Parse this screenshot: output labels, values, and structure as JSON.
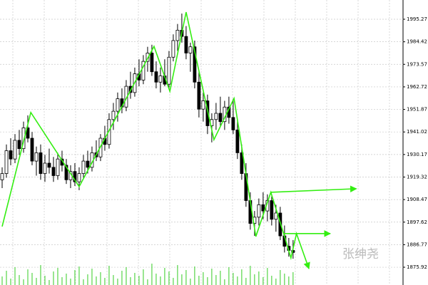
{
  "chart_data": {
    "type": "candlestick",
    "watermark": "张绅尧",
    "xlim": [
      -0.5,
      93.7
    ],
    "ylim": [
      1867.36,
      2004.53
    ],
    "yticks": [
      1995.27,
      1984.42,
      1973.57,
      1962.72,
      1951.87,
      1941.02,
      1930.17,
      1919.32,
      1908.47,
      1897.62,
      1886.77,
      1875.92
    ],
    "grid": true,
    "candle_color": "#000000",
    "zigzag_color": "#33ee11",
    "volume_color": "#33cc22",
    "candles": [
      [
        1918,
        1924,
        1914,
        1921
      ],
      [
        1921,
        1935,
        1919,
        1932
      ],
      [
        1932,
        1938,
        1925,
        1928
      ],
      [
        1928,
        1940,
        1926,
        1937
      ],
      [
        1937,
        1942,
        1930,
        1933
      ],
      [
        1933,
        1946,
        1931,
        1943
      ],
      [
        1943,
        1949,
        1936,
        1938
      ],
      [
        1938,
        1941,
        1925,
        1927
      ],
      [
        1927,
        1934,
        1920,
        1931
      ],
      [
        1931,
        1935,
        1918,
        1921
      ],
      [
        1921,
        1930,
        1917,
        1926
      ],
      [
        1926,
        1933,
        1921,
        1924
      ],
      [
        1924,
        1929,
        1917,
        1920
      ],
      [
        1920,
        1931,
        1918,
        1928
      ],
      [
        1928,
        1932,
        1922,
        1925
      ],
      [
        1925,
        1928,
        1916,
        1918
      ],
      [
        1918,
        1925,
        1914,
        1922
      ],
      [
        1922,
        1926,
        1915,
        1917
      ],
      [
        1917,
        1924,
        1913,
        1921
      ],
      [
        1921,
        1930,
        1919,
        1927
      ],
      [
        1927,
        1932,
        1921,
        1924
      ],
      [
        1924,
        1934,
        1922,
        1931
      ],
      [
        1931,
        1937,
        1927,
        1929
      ],
      [
        1929,
        1940,
        1927,
        1938
      ],
      [
        1938,
        1944,
        1932,
        1935
      ],
      [
        1935,
        1950,
        1933,
        1947
      ],
      [
        1947,
        1955,
        1942,
        1951
      ],
      [
        1951,
        1960,
        1946,
        1957
      ],
      [
        1957,
        1962,
        1950,
        1953
      ],
      [
        1953,
        1966,
        1951,
        1963
      ],
      [
        1963,
        1970,
        1957,
        1960
      ],
      [
        1960,
        1972,
        1958,
        1969
      ],
      [
        1969,
        1976,
        1963,
        1966
      ],
      [
        1966,
        1978,
        1964,
        1975
      ],
      [
        1975,
        1982,
        1970,
        1979
      ],
      [
        1979,
        1983,
        1968,
        1970
      ],
      [
        1970,
        1975,
        1962,
        1965
      ],
      [
        1965,
        1972,
        1960,
        1968
      ],
      [
        1968,
        1976,
        1963,
        1964
      ],
      [
        1964,
        1980,
        1962,
        1977
      ],
      [
        1977,
        1988,
        1975,
        1985
      ],
      [
        1985,
        1993,
        1980,
        1990
      ],
      [
        1990,
        1998,
        1984,
        1987
      ],
      [
        1987,
        1992,
        1976,
        1979
      ],
      [
        1979,
        1984,
        1970,
        1982
      ],
      [
        1982,
        1985,
        1962,
        1965
      ],
      [
        1965,
        1970,
        1948,
        1952
      ],
      [
        1952,
        1960,
        1946,
        1956
      ],
      [
        1956,
        1959,
        1940,
        1944
      ],
      [
        1944,
        1950,
        1936,
        1947
      ],
      [
        1947,
        1955,
        1942,
        1950
      ],
      [
        1950,
        1958,
        1944,
        1946
      ],
      [
        1946,
        1956,
        1942,
        1953
      ],
      [
        1953,
        1958,
        1945,
        1948
      ],
      [
        1948,
        1957,
        1940,
        1942
      ],
      [
        1942,
        1946,
        1928,
        1931
      ],
      [
        1931,
        1935,
        1918,
        1921
      ],
      [
        1921,
        1926,
        1905,
        1908
      ],
      [
        1908,
        1912,
        1894,
        1897
      ],
      [
        1897,
        1903,
        1891,
        1900
      ],
      [
        1900,
        1909,
        1896,
        1906
      ],
      [
        1906,
        1912,
        1899,
        1903
      ],
      [
        1903,
        1911,
        1898,
        1908
      ],
      [
        1908,
        1910,
        1896,
        1899
      ],
      [
        1899,
        1906,
        1893,
        1902
      ],
      [
        1902,
        1905,
        1889,
        1891
      ],
      [
        1891,
        1896,
        1883,
        1886
      ],
      [
        1886,
        1890,
        1881,
        1884
      ],
      [
        1884,
        1889,
        1880,
        1883
      ]
    ],
    "volume": [
      12,
      20,
      9,
      25,
      14,
      8,
      22,
      17,
      10,
      28,
      13,
      7,
      19,
      24,
      11,
      16,
      9,
      21,
      26,
      8,
      15,
      23,
      12,
      18,
      10,
      27,
      14,
      9,
      20,
      25,
      11,
      17,
      13,
      22,
      8,
      30,
      16,
      12,
      24,
      19,
      10,
      28,
      15,
      21,
      9,
      26,
      13,
      18,
      11,
      23,
      14,
      20,
      8,
      25,
      17,
      12,
      22,
      10,
      27,
      15,
      19,
      11,
      24,
      13,
      9,
      21,
      16,
      12,
      18
    ],
    "zigzag": {
      "x": [
        0,
        6.7,
        18,
        35.5,
        39.2,
        43,
        49.5,
        54.2,
        59.3,
        62.8,
        65.8,
        67.5,
        68.8,
        71.7
      ],
      "y": [
        1895.5,
        1950.4,
        1914.7,
        1982.2,
        1960.6,
        1998.7,
        1937.3,
        1957.2,
        1890.7,
        1912.0,
        1892.1,
        1880.4,
        1892.1,
        1875.2
      ]
    },
    "rays": [
      {
        "x": [
          62.8,
          82.8
        ],
        "y": [
          1912.0,
          1913.7
        ]
      },
      {
        "x": [
          65.8,
          76.7
        ],
        "y": [
          1892.1,
          1892.1
        ]
      }
    ]
  }
}
